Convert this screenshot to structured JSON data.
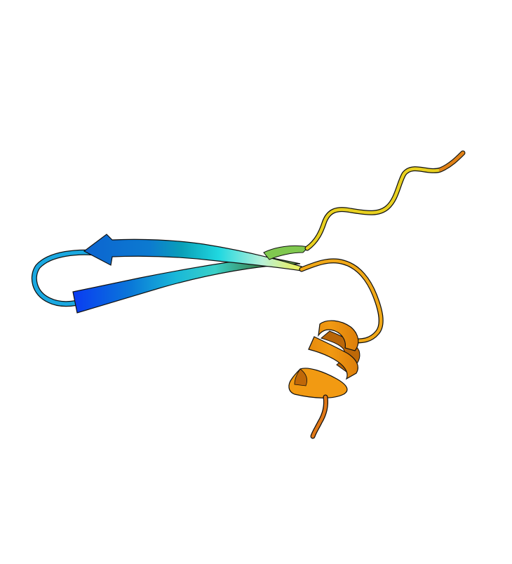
{
  "image": {
    "background_color": "#ffffff",
    "subject": "protein-ribbon-cartoon",
    "color_gradient": [
      "#0a3cf2",
      "#0a78d8",
      "#18c8e8",
      "#b8f0d0",
      "#80c850",
      "#e8e020",
      "#f0c010",
      "#f09a10",
      "#e07818"
    ],
    "elements": [
      {
        "name": "beta-strand-1",
        "color_start": "#0a3cf2",
        "color_end": "#80c850"
      },
      {
        "name": "beta-turn-loop",
        "color": "#1aa0e0"
      },
      {
        "name": "beta-strand-2",
        "color_start": "#1070d8",
        "color_end": "#f0f060"
      },
      {
        "name": "n-terminal-coil",
        "color": "#e8d020"
      },
      {
        "name": "connecting-loop",
        "color": "#f0a818"
      },
      {
        "name": "alpha-helix",
        "color": "#f0900a"
      },
      {
        "name": "c-terminal-tail",
        "color": "#e07818"
      }
    ]
  }
}
